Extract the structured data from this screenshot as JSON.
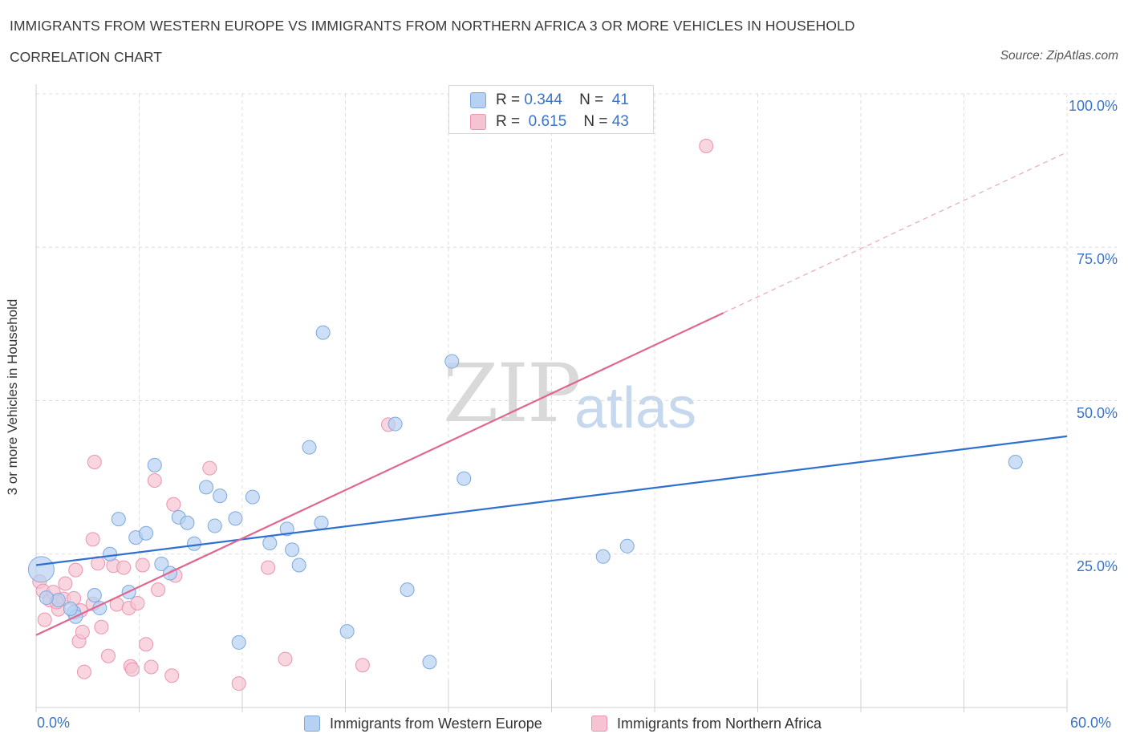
{
  "header": {
    "title": "IMMIGRANTS FROM WESTERN EUROPE VS IMMIGRANTS FROM NORTHERN AFRICA 3 OR MORE VEHICLES IN HOUSEHOLD",
    "subtitle": "CORRELATION CHART",
    "source": "Source: ZipAtlas.com"
  },
  "watermark": {
    "zip": "ZIP",
    "atlas": "atlas"
  },
  "legend": {
    "series1": {
      "r_label": "R =",
      "r_value": "0.344",
      "n_label": "N =",
      "n_value": "41"
    },
    "series2": {
      "r_label": "R =",
      "r_value": "0.615",
      "n_label": "N =",
      "n_value": "43"
    }
  },
  "colors": {
    "blue_fill": "#b7d1f2",
    "blue_stroke": "#7ea8dd",
    "blue_line": "#2f6fd1",
    "pink_fill": "#f6c3d3",
    "pink_stroke": "#e995b0",
    "pink_line": "#e0668e",
    "grid": "#dcdcdc",
    "axis_text": "#3b73c7"
  },
  "chart_data": {
    "type": "scatter",
    "title": "IMMIGRANTS FROM WESTERN EUROPE VS IMMIGRANTS FROM NORTHERN AFRICA 3 OR MORE VEHICLES IN HOUSEHOLD",
    "xlabel": "",
    "ylabel": "3 or more Vehicles in Household",
    "xlim": [
      0,
      60
    ],
    "ylim": [
      0,
      100
    ],
    "x_tick_labels": [
      "0.0%",
      "60.0%"
    ],
    "y_ticks": [
      25,
      50,
      75,
      100
    ],
    "y_tick_labels": [
      "25.0%",
      "50.0%",
      "75.0%",
      "100.0%"
    ],
    "legend_position": "top-center",
    "series": [
      {
        "name": "Immigrants from Western Europe",
        "color": "blue",
        "trend": {
          "x0": 0,
          "y0": 23.2,
          "x1": 60,
          "y1": 44.2
        },
        "points": [
          [
            0.3,
            22.5
          ],
          [
            1.3,
            17.5
          ],
          [
            2.2,
            15.5
          ],
          [
            2.3,
            14.8
          ],
          [
            3.4,
            18.3
          ],
          [
            3.7,
            16.2
          ],
          [
            4.3,
            25.0
          ],
          [
            4.8,
            30.7
          ],
          [
            5.4,
            18.8
          ],
          [
            5.8,
            27.7
          ],
          [
            6.4,
            28.4
          ],
          [
            6.9,
            39.5
          ],
          [
            7.3,
            23.4
          ],
          [
            7.8,
            21.9
          ],
          [
            8.3,
            31.0
          ],
          [
            8.8,
            30.1
          ],
          [
            9.2,
            26.7
          ],
          [
            9.9,
            35.9
          ],
          [
            10.4,
            29.6
          ],
          [
            10.7,
            34.5
          ],
          [
            11.6,
            30.8
          ],
          [
            12.6,
            34.3
          ],
          [
            11.8,
            10.6
          ],
          [
            13.6,
            26.8
          ],
          [
            14.6,
            29.1
          ],
          [
            14.9,
            25.7
          ],
          [
            15.3,
            23.2
          ],
          [
            15.9,
            42.4
          ],
          [
            16.6,
            30.1
          ],
          [
            16.7,
            61.1
          ],
          [
            18.1,
            12.4
          ],
          [
            20.9,
            46.2
          ],
          [
            21.6,
            19.2
          ],
          [
            22.9,
            7.4
          ],
          [
            24.2,
            56.4
          ],
          [
            24.9,
            37.3
          ],
          [
            33.0,
            24.6
          ],
          [
            34.4,
            26.3
          ],
          [
            57.0,
            40.0
          ],
          [
            0.6,
            17.9
          ],
          [
            2.0,
            16.1
          ]
        ]
      },
      {
        "name": "Immigrants from Northern Africa",
        "color": "pink",
        "trend": {
          "x0": 0,
          "y0": 11.8,
          "x1": 40.0,
          "y1": 64.3
        },
        "trend_dashed": {
          "x0": 40.0,
          "y0": 64.3,
          "x1": 60,
          "y1": 90.5
        },
        "points": [
          [
            0.2,
            20.5
          ],
          [
            0.4,
            19.0
          ],
          [
            0.5,
            14.3
          ],
          [
            0.8,
            17.5
          ],
          [
            1.0,
            18.8
          ],
          [
            1.3,
            16.0
          ],
          [
            1.6,
            17.7
          ],
          [
            1.7,
            20.2
          ],
          [
            2.2,
            17.8
          ],
          [
            2.3,
            22.4
          ],
          [
            2.5,
            10.8
          ],
          [
            2.7,
            12.3
          ],
          [
            2.8,
            5.8
          ],
          [
            3.3,
            16.9
          ],
          [
            3.3,
            27.4
          ],
          [
            3.4,
            40.0
          ],
          [
            3.6,
            23.5
          ],
          [
            3.8,
            13.1
          ],
          [
            4.2,
            8.4
          ],
          [
            4.5,
            23.1
          ],
          [
            4.7,
            16.8
          ],
          [
            5.1,
            22.8
          ],
          [
            5.4,
            16.2
          ],
          [
            5.5,
            6.7
          ],
          [
            5.6,
            6.2
          ],
          [
            5.9,
            17.0
          ],
          [
            6.2,
            23.2
          ],
          [
            6.4,
            10.3
          ],
          [
            6.7,
            6.6
          ],
          [
            6.9,
            37.0
          ],
          [
            7.1,
            19.2
          ],
          [
            7.9,
            5.2
          ],
          [
            8.1,
            21.5
          ],
          [
            8.0,
            33.1
          ],
          [
            10.1,
            39.0
          ],
          [
            11.8,
            3.9
          ],
          [
            13.5,
            22.8
          ],
          [
            14.5,
            7.9
          ],
          [
            19.0,
            6.9
          ],
          [
            20.5,
            46.1
          ],
          [
            39.0,
            91.5
          ],
          [
            1.2,
            17.2
          ],
          [
            2.6,
            15.8
          ]
        ]
      }
    ]
  }
}
